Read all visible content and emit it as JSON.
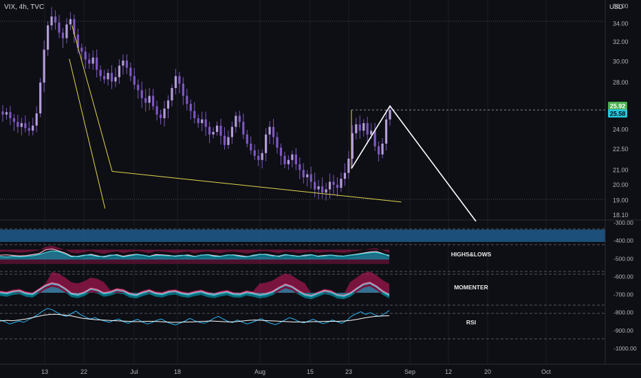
{
  "header": {
    "symbol": "VIX, 4h, TVC",
    "currency": "USD"
  },
  "price_tags": {
    "high": "25.92",
    "last": "25.58"
  },
  "indicators": {
    "panel1": "HIGHS&LOWS",
    "panel2": "MOMENTER",
    "panel3": "RSI"
  },
  "colors": {
    "background": "#0e0f14",
    "candles": "#7e57c2",
    "channel": "#e1d74f",
    "projection": "#ffffff",
    "tag_high": "#4caf50",
    "tag_last": "#26c6da",
    "ind_red": "#c2185b",
    "ind_cyan": "#00bcd4",
    "ind_blue_band": "#1e5a8c"
  },
  "chart_data": [
    {
      "type": "candlestick",
      "title": "VIX, 4h, TVC",
      "x_tick_labels": [
        "13",
        "22",
        "Jul",
        "18",
        "Aug",
        "15",
        "23",
        "Sep",
        "12",
        "20",
        "Oct"
      ],
      "y_tick_labels": [
        "36.00",
        "34.00",
        "32.00",
        "30.00",
        "28.00",
        "25.92",
        "25.58",
        "24.00",
        "22.50",
        "21.00",
        "20.00",
        "19.00",
        "18.10"
      ],
      "y_axis_scale": "log",
      "ylim": [
        18.1,
        36.0
      ],
      "series": [
        {
          "values": [
            25.2,
            25.4,
            24.9,
            24.6,
            24.2,
            24.5,
            24.1,
            23.9,
            24.3,
            25.3,
            28.0,
            31.2,
            33.8,
            34.8,
            34.1,
            33.0,
            32.4,
            33.9,
            34.5,
            32.8,
            31.4,
            31.0,
            30.2,
            29.8,
            30.4,
            29.2,
            28.6,
            28.3,
            28.9,
            28.1,
            28.5,
            29.6,
            30.1,
            29.4,
            28.6,
            27.8,
            27.3,
            26.6,
            26.2,
            26.8,
            25.9,
            25.2,
            24.9,
            25.7,
            26.4,
            27.5,
            28.6,
            27.9,
            26.8,
            26.1,
            25.5,
            24.9,
            24.5,
            24.8,
            24.2,
            23.6,
            23.8,
            24.3,
            23.5,
            22.8,
            23.4,
            24.2,
            25.1,
            24.6,
            23.6,
            22.9,
            22.4,
            22.0,
            21.7,
            22.2,
            23.6,
            24.2,
            23.4,
            22.6,
            22.0,
            21.4,
            21.7,
            22.1,
            21.4,
            21.0,
            20.5,
            20.7,
            20.2,
            19.7,
            19.9,
            19.5,
            19.7,
            20.2,
            20.0,
            19.8,
            20.4,
            20.8,
            21.8,
            23.7,
            24.4,
            23.9,
            24.5,
            23.6,
            23.9,
            22.7,
            22.1,
            22.9,
            24.8,
            25.58
          ],
          "name": ""
        },
        {
          "name": "",
          "values": [
            [
              18.4,
              33.8
            ],
            [
              18.1,
              34.4
            ],
            [
              21.1,
              20.8
            ],
            [
              21.1,
              24.5
            ],
            [
              26.2,
              26.05
            ],
            [
              26.0,
              24.1
            ],
            [
              26.0,
              27.5
            ],
            [
              26.0,
              21.5
            ]
          ]
        }
      ]
    },
    {
      "type": "line",
      "title": "HIGHS&LOWS",
      "y_tick_labels": [
        "-300.00",
        "-400.00",
        "-500.00",
        "-600.00",
        "-700.00",
        "-800.00",
        "-900.00",
        "-1000.00"
      ],
      "series": [
        {
          "values": [
            -481,
            -479,
            -482,
            -485,
            -483,
            -478,
            -472,
            -452,
            -446,
            -457,
            -468,
            -486,
            -489,
            -482,
            -476,
            -484,
            -491,
            -483,
            -478,
            -487,
            -480,
            -476,
            -480,
            -487,
            -477,
            -479,
            -482,
            -487,
            -483,
            -479,
            -488,
            -481,
            -478,
            -483,
            -487,
            -480,
            -479,
            -483,
            -489,
            -484,
            -477,
            -476,
            -482,
            -488,
            -479,
            -482,
            -487,
            -484,
            -479,
            -486,
            -482,
            -480,
            -484,
            -486,
            -480,
            -475,
            -469,
            -463,
            -460,
            -472,
            -486
          ],
          "name": ""
        },
        {
          "name": "",
          "values": [
            -489,
            -491,
            -488,
            -490,
            -488,
            -484,
            -478,
            -466,
            -457,
            -461,
            -474,
            -490,
            -487,
            -480,
            -480,
            -488,
            -488,
            -480,
            -481,
            -490,
            -484,
            -478,
            -481,
            -488,
            -482,
            -482,
            -485,
            -485,
            -481,
            -484,
            -489,
            -480,
            -479,
            -488,
            -488,
            -479,
            -481,
            -488,
            -491,
            -481,
            -476,
            -478,
            -486,
            -485,
            -477,
            -484,
            -488,
            -480,
            -478,
            -488,
            -485,
            -480,
            -486,
            -486,
            -481,
            -478,
            -472,
            -468,
            -466,
            -474,
            -482
          ]
        }
      ]
    },
    {
      "type": "line",
      "title": "MOMENTER",
      "series": [
        {
          "values": [
            -685,
            -690,
            -680,
            -676,
            -690,
            -695,
            -672,
            -648,
            -635,
            -642,
            -664,
            -692,
            -698,
            -686,
            -665,
            -672,
            -690,
            -684,
            -671,
            -676,
            -694,
            -700,
            -686,
            -676,
            -690,
            -694,
            -682,
            -678,
            -690,
            -696,
            -686,
            -680,
            -692,
            -698,
            -688,
            -682,
            -694,
            -696,
            -684,
            -690,
            -699,
            -694,
            -682,
            -660,
            -642,
            -654,
            -678,
            -698,
            -704,
            -690,
            -676,
            -682,
            -700,
            -704,
            -690,
            -664,
            -640,
            -632,
            -652,
            -680,
            -700
          ],
          "name": ""
        }
      ]
    },
    {
      "type": "line",
      "title": "RSI",
      "series": [
        {
          "values": [
            55,
            50,
            43,
            47,
            52,
            48,
            56,
            63,
            72,
            82,
            90,
            86,
            78,
            70,
            66,
            74,
            82,
            71,
            64,
            58,
            62,
            56,
            52,
            48,
            54,
            58,
            50,
            45,
            52,
            57,
            49,
            43,
            47,
            54,
            58,
            50,
            44,
            40,
            46,
            52,
            60,
            53,
            48,
            45,
            51,
            60,
            66,
            58,
            51,
            47,
            55,
            49,
            43,
            47,
            53,
            59,
            51,
            45,
            41,
            47,
            55,
            62,
            57,
            50,
            46,
            52,
            57,
            50,
            44,
            48,
            55,
            50,
            45,
            53,
            66,
            74,
            80,
            72,
            77,
            70,
            66,
            74,
            84
          ],
          "name": ""
        },
        {
          "name": "",
          "values": [
            52,
            54,
            53,
            55,
            58,
            62,
            66,
            70,
            72,
            72,
            70,
            68,
            64,
            60,
            58,
            56,
            55,
            54,
            53,
            52,
            51,
            50,
            50,
            51,
            51,
            50,
            49,
            48,
            48,
            49,
            49,
            50,
            51,
            52,
            51,
            50,
            49,
            50,
            52,
            54,
            55,
            54,
            53,
            52,
            51,
            50,
            49,
            49,
            49,
            50,
            50,
            51,
            51,
            51,
            52,
            54,
            57,
            61,
            64,
            66,
            67,
            68
          ]
        }
      ]
    }
  ]
}
